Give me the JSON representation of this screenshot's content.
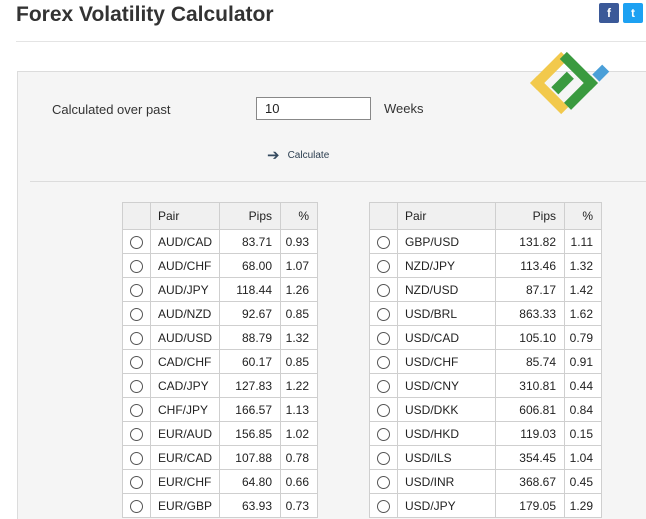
{
  "header": {
    "title": "Forex Volatility Calculator",
    "social": [
      {
        "name": "facebook",
        "glyph": "f",
        "color": "#3b5998"
      },
      {
        "name": "twitter",
        "glyph": "t",
        "color": "#1da1f2"
      }
    ]
  },
  "form": {
    "calculated_over_label": "Calculated over past",
    "weeks_value": "10",
    "weeks_label": "Weeks",
    "calculate_label": "Calculate"
  },
  "columns": {
    "pair": "Pair",
    "pips": "Pips",
    "pct": "%"
  },
  "left_table": [
    {
      "pair": "AUD/CAD",
      "pips": "83.71",
      "pct": "0.93"
    },
    {
      "pair": "AUD/CHF",
      "pips": "68.00",
      "pct": "1.07"
    },
    {
      "pair": "AUD/JPY",
      "pips": "118.44",
      "pct": "1.26"
    },
    {
      "pair": "AUD/NZD",
      "pips": "92.67",
      "pct": "0.85"
    },
    {
      "pair": "AUD/USD",
      "pips": "88.79",
      "pct": "1.32"
    },
    {
      "pair": "CAD/CHF",
      "pips": "60.17",
      "pct": "0.85"
    },
    {
      "pair": "CAD/JPY",
      "pips": "127.83",
      "pct": "1.22"
    },
    {
      "pair": "CHF/JPY",
      "pips": "166.57",
      "pct": "1.13"
    },
    {
      "pair": "EUR/AUD",
      "pips": "156.85",
      "pct": "1.02"
    },
    {
      "pair": "EUR/CAD",
      "pips": "107.88",
      "pct": "0.78"
    },
    {
      "pair": "EUR/CHF",
      "pips": "64.80",
      "pct": "0.66"
    },
    {
      "pair": "EUR/GBP",
      "pips": "63.93",
      "pct": "0.73"
    }
  ],
  "right_table": [
    {
      "pair": "GBP/USD",
      "pips": "131.82",
      "pct": "1.11"
    },
    {
      "pair": "NZD/JPY",
      "pips": "113.46",
      "pct": "1.32"
    },
    {
      "pair": "NZD/USD",
      "pips": "87.17",
      "pct": "1.42"
    },
    {
      "pair": "USD/BRL",
      "pips": "863.33",
      "pct": "1.62"
    },
    {
      "pair": "USD/CAD",
      "pips": "105.10",
      "pct": "0.79"
    },
    {
      "pair": "USD/CHF",
      "pips": "85.74",
      "pct": "0.91"
    },
    {
      "pair": "USD/CNY",
      "pips": "310.81",
      "pct": "0.44"
    },
    {
      "pair": "USD/DKK",
      "pips": "606.81",
      "pct": "0.84"
    },
    {
      "pair": "USD/HKD",
      "pips": "119.03",
      "pct": "0.15"
    },
    {
      "pair": "USD/ILS",
      "pips": "354.45",
      "pct": "1.04"
    },
    {
      "pair": "USD/INR",
      "pips": "368.67",
      "pct": "0.45"
    },
    {
      "pair": "USD/JPY",
      "pips": "179.05",
      "pct": "1.29"
    }
  ],
  "colors": {
    "logo_green": "#3a9a3f",
    "logo_yellow": "#f2c94c",
    "logo_blue": "#4a9fd8",
    "accent": "#34495e"
  },
  "icons": {
    "calculate": "arrow-right-icon",
    "logo": "brand-logo"
  }
}
